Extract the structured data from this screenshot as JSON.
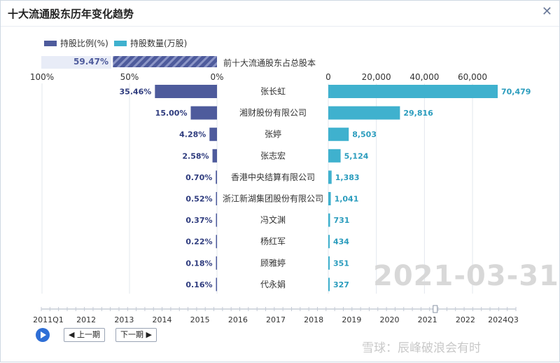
{
  "window": {
    "title": "十大流通股东历年变化趋势",
    "close_icon": "close-icon"
  },
  "legend": [
    {
      "label": "持股比例(%)",
      "color": "#4e5b9c"
    },
    {
      "label": "持股数量(万股)",
      "color": "#3fb1ce"
    }
  ],
  "summary": {
    "value": "59.47%",
    "label": "前十大流通股东占总股本",
    "fraction": 0.5947
  },
  "chart_data": {
    "type": "bar",
    "categories": [
      "张长虹",
      "湘财股份有限公司",
      "张婷",
      "张志宏",
      "香港中央结算有限公司",
      "浙江新湖集团股份有限公司",
      "冯文渊",
      "杨红军",
      "顾雅婷",
      "代永娟"
    ],
    "series": [
      {
        "name": "持股比例(%)",
        "values": [
          35.46,
          15.0,
          4.28,
          2.58,
          0.7,
          0.52,
          0.37,
          0.22,
          0.18,
          0.16
        ],
        "labels": [
          "35.46%",
          "15.00%",
          "4.28%",
          "2.58%",
          "0.70%",
          "0.52%",
          "0.37%",
          "0.22%",
          "0.18%",
          "0.16%"
        ],
        "color": "#4e5b9c",
        "axis_ticks": [
          "100%",
          "50%",
          "0%"
        ],
        "xlim": [
          0,
          100
        ]
      },
      {
        "name": "持股数量(万股)",
        "values": [
          70479,
          29816,
          8503,
          5124,
          1383,
          1041,
          731,
          434,
          351,
          327
        ],
        "labels": [
          "70,479",
          "29,816",
          "8,503",
          "5,124",
          "1,383",
          "1,041",
          "731",
          "434",
          "351",
          "327"
        ],
        "color": "#3fb1ce",
        "axis_ticks": [
          "0",
          "20,000",
          "40,000",
          "60,000"
        ],
        "xlim": [
          0,
          70479
        ]
      }
    ],
    "period": "2021-03-31"
  },
  "timeline": {
    "labels": [
      "2011Q1",
      "2012",
      "2013",
      "2014",
      "2015",
      "2016",
      "2017",
      "2018",
      "2019",
      "2020",
      "2021",
      "2022",
      "2024Q3"
    ],
    "current_position": 0.83
  },
  "controls": {
    "prev_label": "上一期",
    "next_label": "下一期"
  },
  "watermark": "雪球：辰峰破浪会有时"
}
